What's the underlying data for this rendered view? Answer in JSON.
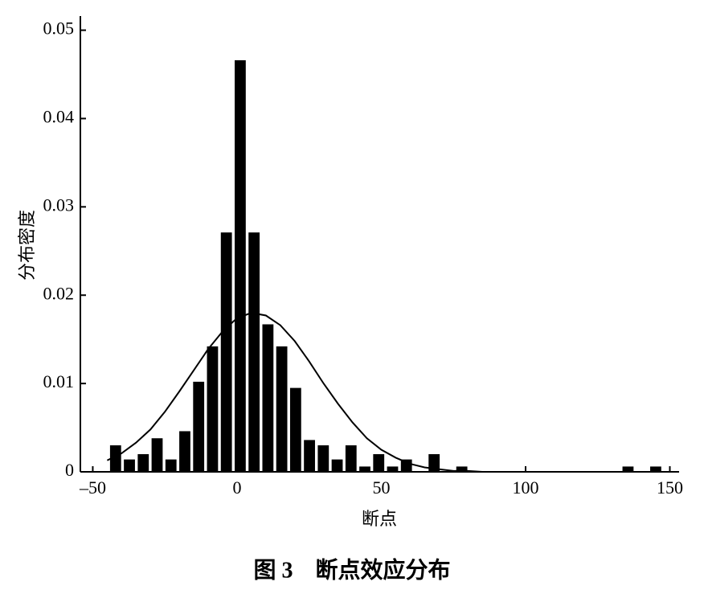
{
  "chart_data": {
    "type": "histogram",
    "xlabel": "断点",
    "ylabel": "分布密度",
    "caption": "图 3　断点效应分布",
    "bins": [
      -44.5,
      -39.7,
      -34.9,
      -30.1,
      -25.3,
      -20.5,
      -15.7,
      -10.9,
      -6.1,
      -1.3,
      3.5,
      8.3,
      13.1,
      17.9,
      22.7,
      27.5,
      32.3,
      37.1,
      41.9,
      46.7,
      51.5,
      56.3,
      61.1,
      65.9,
      70.7,
      75.5,
      80.3,
      85.1,
      89.9,
      94.7,
      99.5,
      104.3,
      109.1,
      113.9,
      118.7,
      123.5,
      128.3,
      133.1,
      137.9,
      142.7,
      147.5
    ],
    "values": [
      0.003,
      0.0014,
      0.002,
      0.0038,
      0.0014,
      0.0046,
      0.0102,
      0.0142,
      0.0271,
      0.0466,
      0.0271,
      0.0167,
      0.0142,
      0.0095,
      0.0036,
      0.003,
      0.0014,
      0.003,
      0.0006,
      0.002,
      0.0006,
      0.0014,
      0,
      0.002,
      0,
      0.0006,
      0,
      0,
      0,
      0,
      0,
      0,
      0,
      0,
      0,
      0,
      0,
      0.0006,
      0,
      0.0006
    ],
    "color": "#000000",
    "curve": {
      "x": [
        -45,
        -40,
        -35,
        -30,
        -25,
        -20,
        -15,
        -10,
        -5,
        0,
        5,
        10,
        15,
        20,
        25,
        30,
        35,
        40,
        45,
        50,
        55,
        60,
        65,
        70,
        75,
        80,
        85
      ],
      "values": [
        0.0013,
        0.0021,
        0.0033,
        0.0048,
        0.0068,
        0.0091,
        0.0115,
        0.0139,
        0.0159,
        0.0174,
        0.018,
        0.0177,
        0.0166,
        0.0148,
        0.0125,
        0.01,
        0.0077,
        0.0056,
        0.0038,
        0.0025,
        0.0016,
        0.0009,
        0.0005,
        0.0003,
        0.0001,
        0.0001,
        0
      ]
    },
    "xlim": [
      -54.3,
      153.2
    ],
    "ylim": [
      0,
      0.0516
    ],
    "xticks": [
      {
        "value": -50,
        "label": "–50"
      },
      0,
      50,
      100,
      150
    ],
    "yticks": [
      0,
      0.01,
      0.02,
      0.03,
      0.04,
      0.05
    ]
  }
}
